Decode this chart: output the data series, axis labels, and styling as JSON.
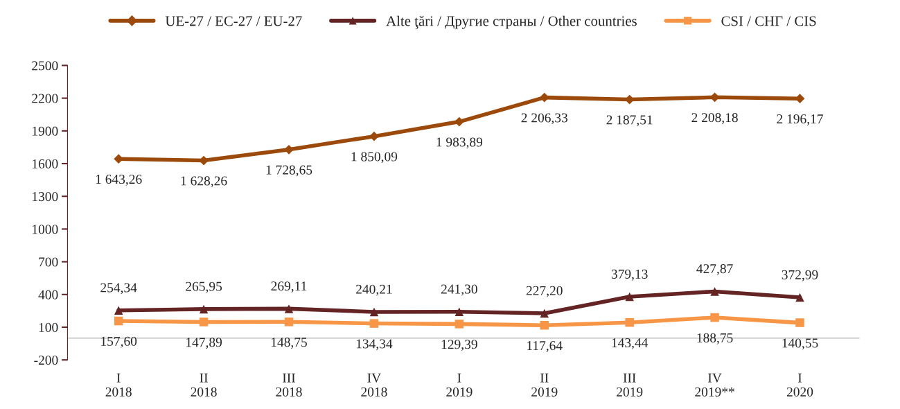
{
  "chart_data": {
    "type": "line",
    "categories": [
      "I\n2018",
      "II\n2018",
      "III\n2018",
      "IV\n2018",
      "I\n2019",
      "II\n2019",
      "III\n2019",
      "IV\n2019**",
      "I\n2020"
    ],
    "series": [
      {
        "name": "UE-27 / EC-27 / EU-27",
        "color": "#9c4a0c",
        "marker": "diamond",
        "values": [
          1643.26,
          1628.26,
          1728.65,
          1850.09,
          1983.89,
          2206.33,
          2187.51,
          2208.18,
          2196.17
        ],
        "value_labels": [
          "1 643,26",
          "1 628,26",
          "1 728,65",
          "1 850,09",
          "1 983,89",
          "2 206,33",
          "2 187,51",
          "2 208,18",
          "2 196,17"
        ]
      },
      {
        "name": "Alte ţări / Другие страны / Other countries",
        "color": "#642424",
        "marker": "triangle",
        "values": [
          254.34,
          265.95,
          269.11,
          240.21,
          241.3,
          227.2,
          379.13,
          427.87,
          372.99
        ],
        "value_labels": [
          "254,34",
          "265,95",
          "269,11",
          "240,21",
          "241,30",
          "227,20",
          "379,13",
          "427,87",
          "372,99"
        ]
      },
      {
        "name": "CSI / СНГ / CIS",
        "color": "#f79646",
        "marker": "square",
        "values": [
          157.6,
          147.89,
          148.75,
          134.34,
          129.39,
          117.64,
          143.44,
          188.75,
          140.55
        ],
        "value_labels": [
          "157,60",
          "147,89",
          "148,75",
          "134,34",
          "129,39",
          "117,64",
          "143,44",
          "188,75",
          "140,55"
        ]
      }
    ],
    "ylim": [
      -200,
      2500
    ],
    "yticks": [
      -200,
      100,
      400,
      700,
      1000,
      1300,
      1600,
      1900,
      2200,
      2500
    ],
    "grid": false,
    "legend": "top",
    "line_style": "solid"
  }
}
